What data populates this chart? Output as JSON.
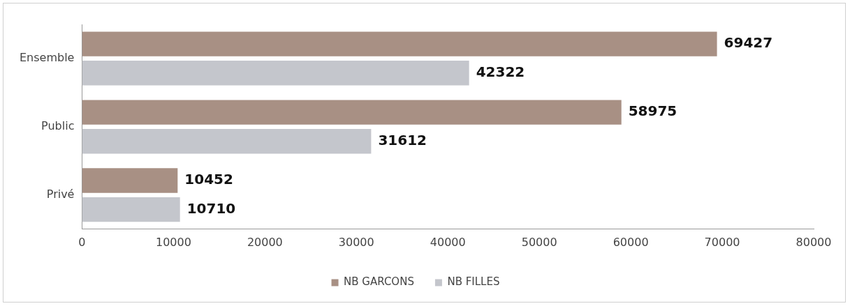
{
  "chart_data": {
    "type": "bar",
    "orientation": "horizontal",
    "categories": [
      "Ensemble",
      "Public",
      "Privé"
    ],
    "series": [
      {
        "name": "NB GARCONS",
        "color": "#a89084",
        "values": [
          69427,
          58975,
          10452
        ]
      },
      {
        "name": "NB FILLES",
        "color": "#c4c6cc",
        "values": [
          42322,
          31612,
          10710
        ]
      }
    ],
    "xlim": [
      0,
      80000
    ],
    "xticks": [
      0,
      10000,
      20000,
      30000,
      40000,
      50000,
      60000,
      70000,
      80000
    ],
    "grid": false,
    "legend": "bottom",
    "data_labels": true
  }
}
